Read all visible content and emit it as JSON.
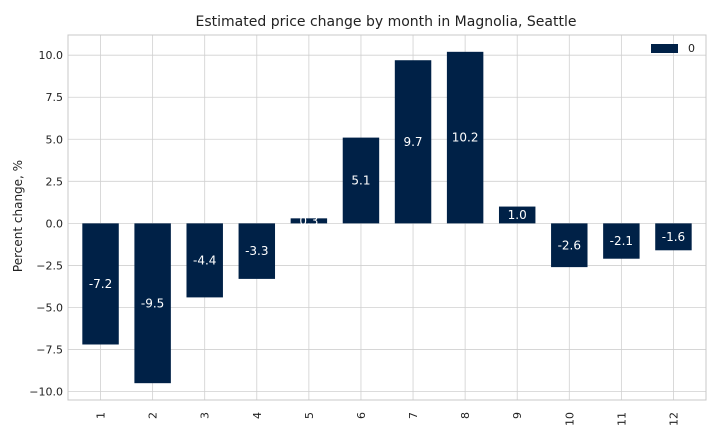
{
  "chart_data": {
    "type": "bar",
    "title": "Estimated price change by month in Magnolia, Seattle",
    "xlabel": "",
    "ylabel": "Percent change, %",
    "categories": [
      "1",
      "2",
      "3",
      "4",
      "5",
      "6",
      "7",
      "8",
      "9",
      "10",
      "11",
      "12"
    ],
    "series": [
      {
        "name": "0",
        "values": [
          -7.2,
          -9.5,
          -4.4,
          -3.3,
          0.3,
          5.1,
          9.7,
          10.2,
          1.0,
          -2.6,
          -2.1,
          -1.6
        ],
        "labels": [
          "-7.2",
          "-9.5",
          "-4.4",
          "-3.3",
          "0.3",
          "5.1",
          "9.7",
          "10.2",
          "1.0",
          "-2.6",
          "-2.1",
          "-1.6"
        ]
      }
    ],
    "yticks": [
      -10.0,
      -7.5,
      -5.0,
      -2.5,
      0.0,
      2.5,
      5.0,
      7.5,
      10.0
    ],
    "ytick_labels": [
      "−10.0",
      "−7.5",
      "−5.0",
      "−2.5",
      "0.0",
      "2.5",
      "5.0",
      "7.5",
      "10.0"
    ],
    "ylim": [
      -10.5,
      11.2
    ],
    "grid": true,
    "legend_position": "top-right",
    "bar_color": "#002147",
    "grid_color": "#d0d0d0",
    "axes_edge_color": "#c8c8c8"
  }
}
